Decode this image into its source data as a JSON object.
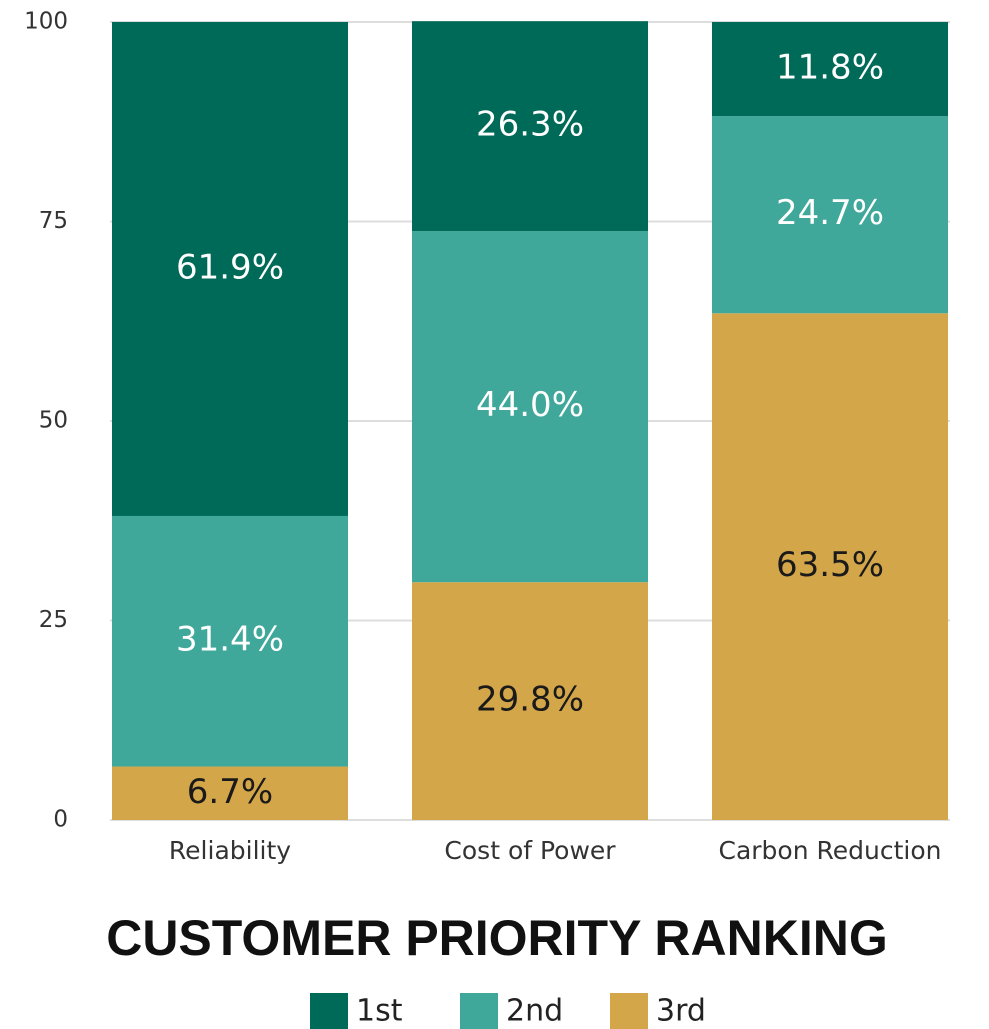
{
  "chart_data": {
    "type": "stacked_bar",
    "title": "CUSTOMER PRIORITY RANKING",
    "categories": [
      "Reliability",
      "Cost of Power",
      "Carbon Reduction"
    ],
    "series": [
      {
        "name": "1st",
        "color": "#006a58",
        "label_color": "#ffffff",
        "values": [
          61.9,
          26.3,
          11.8
        ],
        "value_labels": [
          "61.9%",
          "26.3%",
          "11.8%"
        ]
      },
      {
        "name": "2nd",
        "color": "#3fa89a",
        "label_color": "#ffffff",
        "values": [
          31.4,
          44.0,
          24.7
        ],
        "value_labels": [
          "31.4%",
          "44.0%",
          "24.7%"
        ]
      },
      {
        "name": "3rd",
        "color": "#d4a64a",
        "label_color": "#1a1a1a",
        "values": [
          6.7,
          29.8,
          63.5
        ],
        "value_labels": [
          "6.7%",
          "29.8%",
          "63.5%"
        ]
      }
    ],
    "ylim": [
      0,
      100
    ],
    "yticks": [
      0,
      25,
      50,
      75,
      100
    ],
    "grid": true,
    "legend": "bottom"
  }
}
